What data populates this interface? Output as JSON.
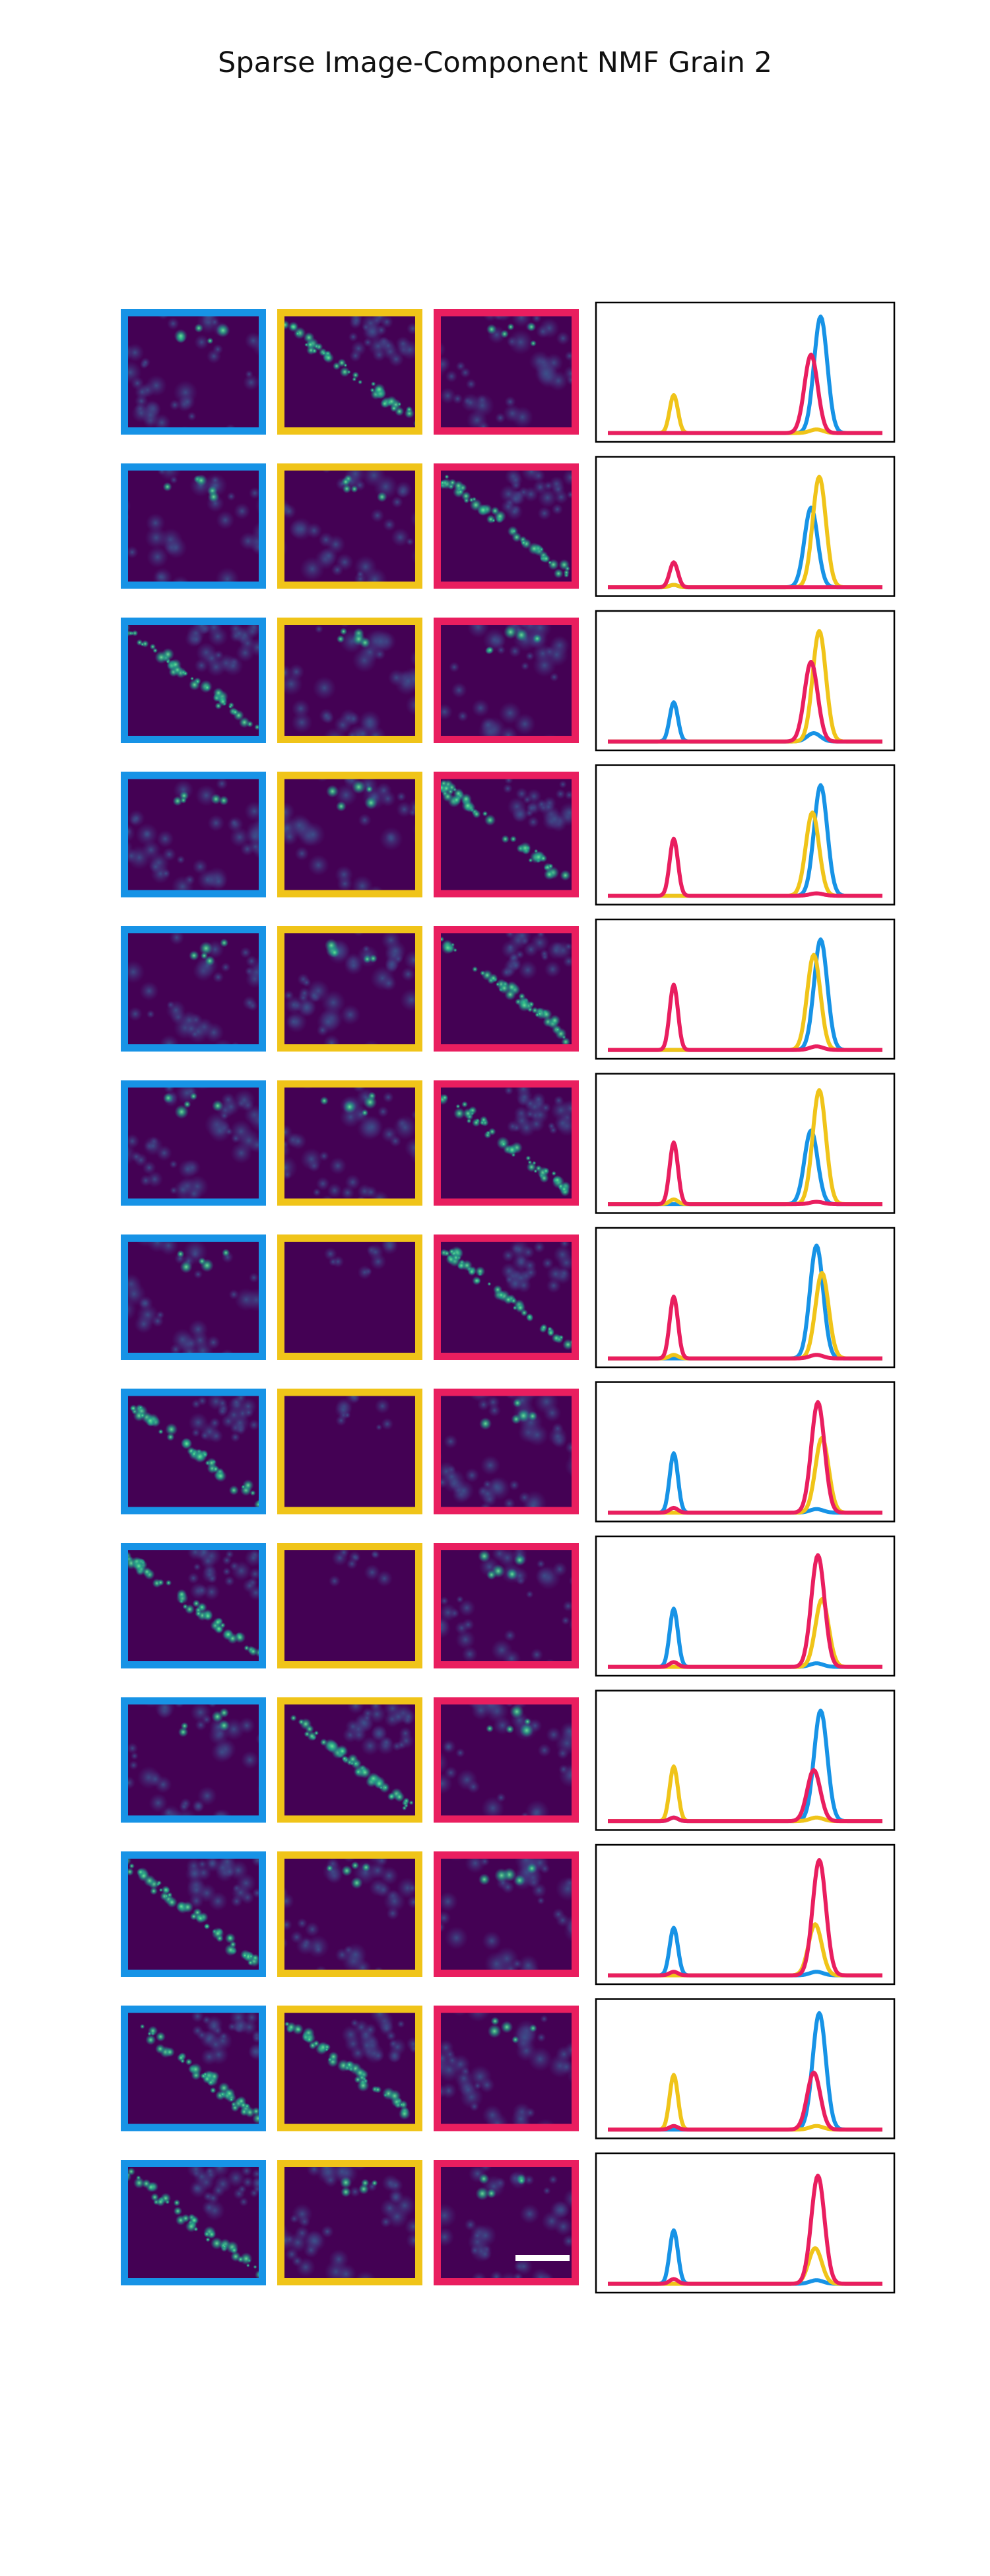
{
  "title": "Sparse Image-Component NMF Grain 2",
  "colors": {
    "component_1": "#1793e6",
    "component_2": "#f0c419",
    "component_3": "#e91e5f",
    "image_background": "#440154",
    "scale_bar": "#ffffff",
    "axes_frame": "#000000"
  },
  "chart_data": {
    "type": "line",
    "title": "Sparse Image-Component NMF Grain 2",
    "xlabel": "",
    "ylabel": "",
    "x_range": [
      0,
      100
    ],
    "y_range": [
      0,
      1.05
    ],
    "grid": false,
    "legend": "none",
    "axis_ticks": "hidden",
    "component_colors": [
      "#1793e6",
      "#f0c419",
      "#e91e5f"
    ],
    "image_frame_colors": [
      "#1793e6",
      "#f0c419",
      "#e91e5f"
    ],
    "scale_bar": "bottom-right of last row, third image",
    "rows": [
      {
        "row": 1,
        "image_pattern": [
          "diffuse",
          "band",
          "diffuse"
        ],
        "series": [
          {
            "peak1": 0.0,
            "peak2": 0.98,
            "peak2_x": 77.5
          },
          {
            "peak1": 0.32,
            "peak2": 0.03,
            "peak2_x": 76.0
          },
          {
            "peak1": 0.0,
            "peak2": 0.66,
            "peak2_x": 74.0
          }
        ]
      },
      {
        "row": 2,
        "image_pattern": [
          "diffuse",
          "diffuse",
          "band"
        ],
        "series": [
          {
            "peak1": 0.02,
            "peak2": 0.67,
            "peak2_x": 74.0
          },
          {
            "peak1": 0.02,
            "peak2": 0.93,
            "peak2_x": 77.0
          },
          {
            "peak1": 0.21,
            "peak2": 0.0,
            "peak2_x": 76.0
          }
        ]
      },
      {
        "row": 3,
        "image_pattern": [
          "band",
          "diffuse",
          "diffuse"
        ],
        "series": [
          {
            "peak1": 0.33,
            "peak2": 0.07,
            "peak2_x": 75.0
          },
          {
            "peak1": 0.0,
            "peak2": 0.93,
            "peak2_x": 77.0
          },
          {
            "peak1": 0.0,
            "peak2": 0.67,
            "peak2_x": 74.0
          }
        ]
      },
      {
        "row": 4,
        "image_pattern": [
          "diffuse",
          "diffuse",
          "band"
        ],
        "series": [
          {
            "peak1": 0.0,
            "peak2": 0.93,
            "peak2_x": 77.5
          },
          {
            "peak1": 0.0,
            "peak2": 0.7,
            "peak2_x": 74.5
          },
          {
            "peak1": 0.48,
            "peak2": 0.02,
            "peak2_x": 76.0
          }
        ]
      },
      {
        "row": 5,
        "image_pattern": [
          "diffuse",
          "diffuse",
          "band"
        ],
        "series": [
          {
            "peak1": 0.0,
            "peak2": 0.93,
            "peak2_x": 77.5
          },
          {
            "peak1": 0.0,
            "peak2": 0.8,
            "peak2_x": 75.0
          },
          {
            "peak1": 0.55,
            "peak2": 0.03,
            "peak2_x": 76.0
          }
        ]
      },
      {
        "row": 6,
        "image_pattern": [
          "diffuse",
          "diffuse",
          "band"
        ],
        "series": [
          {
            "peak1": 0.0,
            "peak2": 0.62,
            "peak2_x": 74.0
          },
          {
            "peak1": 0.04,
            "peak2": 0.96,
            "peak2_x": 77.0
          },
          {
            "peak1": 0.52,
            "peak2": 0.02,
            "peak2_x": 76.0
          }
        ]
      },
      {
        "row": 7,
        "image_pattern": [
          "diffuse",
          "dark",
          "band"
        ],
        "series": [
          {
            "peak1": 0.0,
            "peak2": 0.95,
            "peak2_x": 76.0
          },
          {
            "peak1": 0.03,
            "peak2": 0.72,
            "peak2_x": 78.0
          },
          {
            "peak1": 0.52,
            "peak2": 0.03,
            "peak2_x": 76.0
          }
        ]
      },
      {
        "row": 8,
        "image_pattern": [
          "band",
          "dark",
          "diffuse"
        ],
        "series": [
          {
            "peak1": 0.5,
            "peak2": 0.03,
            "peak2_x": 76.0
          },
          {
            "peak1": 0.0,
            "peak2": 0.63,
            "peak2_x": 78.0
          },
          {
            "peak1": 0.04,
            "peak2": 0.93,
            "peak2_x": 76.5
          }
        ]
      },
      {
        "row": 9,
        "image_pattern": [
          "band",
          "dark",
          "diffuse"
        ],
        "series": [
          {
            "peak1": 0.49,
            "peak2": 0.03,
            "peak2_x": 76.0
          },
          {
            "peak1": 0.0,
            "peak2": 0.57,
            "peak2_x": 78.0
          },
          {
            "peak1": 0.04,
            "peak2": 0.94,
            "peak2_x": 76.5
          }
        ]
      },
      {
        "row": 10,
        "image_pattern": [
          "diffuse",
          "band",
          "diffuse"
        ],
        "series": [
          {
            "peak1": 0.03,
            "peak2": 0.93,
            "peak2_x": 77.5
          },
          {
            "peak1": 0.46,
            "peak2": 0.03,
            "peak2_x": 76.0
          },
          {
            "peak1": 0.03,
            "peak2": 0.43,
            "peak2_x": 75.0
          }
        ]
      },
      {
        "row": 11,
        "image_pattern": [
          "band",
          "diffuse",
          "diffuse"
        ],
        "series": [
          {
            "peak1": 0.4,
            "peak2": 0.03,
            "peak2_x": 76.0
          },
          {
            "peak1": 0.0,
            "peak2": 0.43,
            "peak2_x": 75.5
          },
          {
            "peak1": 0.03,
            "peak2": 0.97,
            "peak2_x": 77.0
          }
        ]
      },
      {
        "row": 12,
        "image_pattern": [
          "band",
          "band",
          "diffuse"
        ],
        "series": [
          {
            "peak1": 0.0,
            "peak2": 0.98,
            "peak2_x": 77.0
          },
          {
            "peak1": 0.46,
            "peak2": 0.03,
            "peak2_x": 76.0
          },
          {
            "peak1": 0.03,
            "peak2": 0.48,
            "peak2_x": 75.0
          }
        ]
      },
      {
        "row": 13,
        "image_pattern": [
          "band",
          "diffuse",
          "diffuse"
        ],
        "series": [
          {
            "peak1": 0.45,
            "peak2": 0.03,
            "peak2_x": 76.0
          },
          {
            "peak1": 0.0,
            "peak2": 0.3,
            "peak2_x": 75.5
          },
          {
            "peak1": 0.04,
            "peak2": 0.91,
            "peak2_x": 76.5
          }
        ]
      }
    ]
  }
}
